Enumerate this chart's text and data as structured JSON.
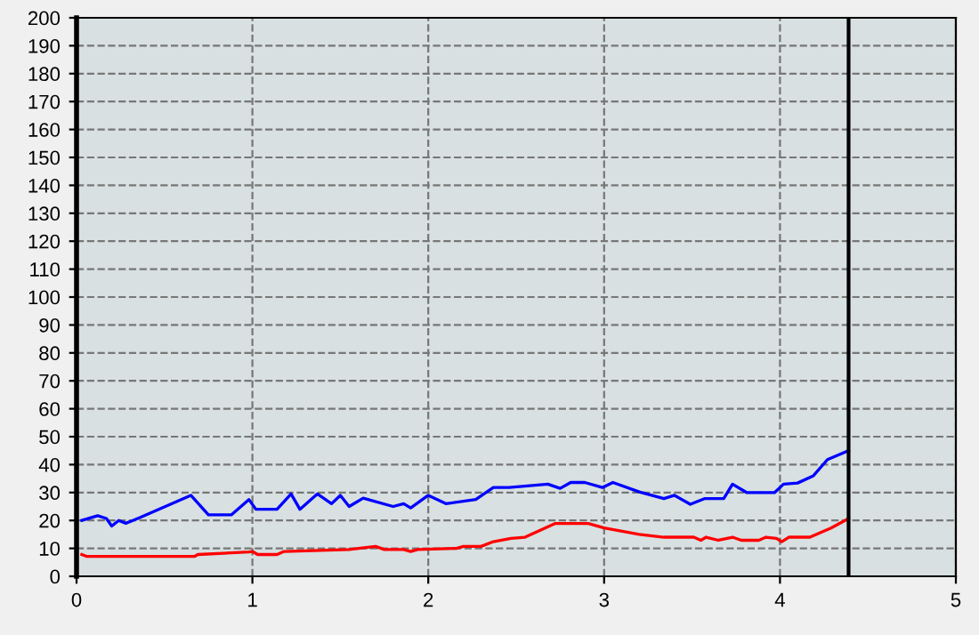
{
  "chart_data": {
    "type": "line",
    "xlim": [
      0,
      5
    ],
    "xticks": [
      0,
      1,
      2,
      3,
      4,
      5
    ],
    "ylim": [
      0,
      200
    ],
    "yticks": [
      0,
      10,
      20,
      30,
      40,
      50,
      60,
      70,
      80,
      90,
      100,
      110,
      120,
      130,
      140,
      150,
      160,
      170,
      180,
      190,
      200
    ],
    "grid": true,
    "line_style": "solid",
    "ref_lines": [
      {
        "axis": "x",
        "value": 4.39,
        "color": "#000000"
      }
    ],
    "series": [
      {
        "color": "#0000ff",
        "x": [
          0.03,
          0.12,
          0.17,
          0.2,
          0.24,
          0.28,
          0.32,
          0.36,
          0.65,
          0.75,
          0.88,
          0.98,
          1.02,
          1.14,
          1.22,
          1.27,
          1.37,
          1.45,
          1.5,
          1.55,
          1.63,
          1.8,
          1.86,
          1.9,
          2.0,
          2.1,
          2.27,
          2.37,
          2.46,
          2.68,
          2.75,
          2.81,
          2.89,
          2.99,
          3.05,
          3.2,
          3.34,
          3.4,
          3.49,
          3.57,
          3.68,
          3.73,
          3.81,
          3.97,
          4.02,
          4.1,
          4.19,
          4.27,
          4.39
        ],
        "values": [
          20,
          21.7,
          20.7,
          18,
          20,
          19,
          20,
          21,
          29,
          22,
          22,
          27.5,
          24,
          24,
          29.5,
          24,
          29.5,
          26,
          29,
          25,
          28,
          25,
          26,
          24.5,
          29,
          26,
          27.5,
          31.8,
          31.8,
          33,
          31.5,
          33.6,
          33.6,
          31.8,
          33.6,
          30.2,
          27.8,
          29,
          25.8,
          27.8,
          27.8,
          33,
          30,
          30,
          33,
          33.4,
          36,
          41.8,
          45
        ]
      },
      {
        "color": "#ff0000",
        "x": [
          0.03,
          0.06,
          0.67,
          0.69,
          0.98,
          1.0,
          1.03,
          1.14,
          1.18,
          1.55,
          1.7,
          1.75,
          1.86,
          1.9,
          1.94,
          2.16,
          2.2,
          2.3,
          2.37,
          2.47,
          2.55,
          2.72,
          2.91,
          3.0,
          3.2,
          3.34,
          3.51,
          3.55,
          3.58,
          3.65,
          3.73,
          3.78,
          3.88,
          3.92,
          3.98,
          4.01,
          4.05,
          4.17,
          4.29,
          4.39
        ],
        "values": [
          7.8,
          7.1,
          7.1,
          7.8,
          8.7,
          8.9,
          7.8,
          7.8,
          8.9,
          9.6,
          10.7,
          9.6,
          9.6,
          8.9,
          9.6,
          10,
          10.7,
          10.7,
          12.4,
          13.6,
          14,
          18.9,
          18.9,
          17.3,
          15,
          14,
          14,
          12.9,
          14,
          12.9,
          14,
          12.9,
          12.9,
          14,
          13.6,
          12.4,
          14,
          14,
          17.3,
          20.7
        ]
      }
    ]
  }
}
